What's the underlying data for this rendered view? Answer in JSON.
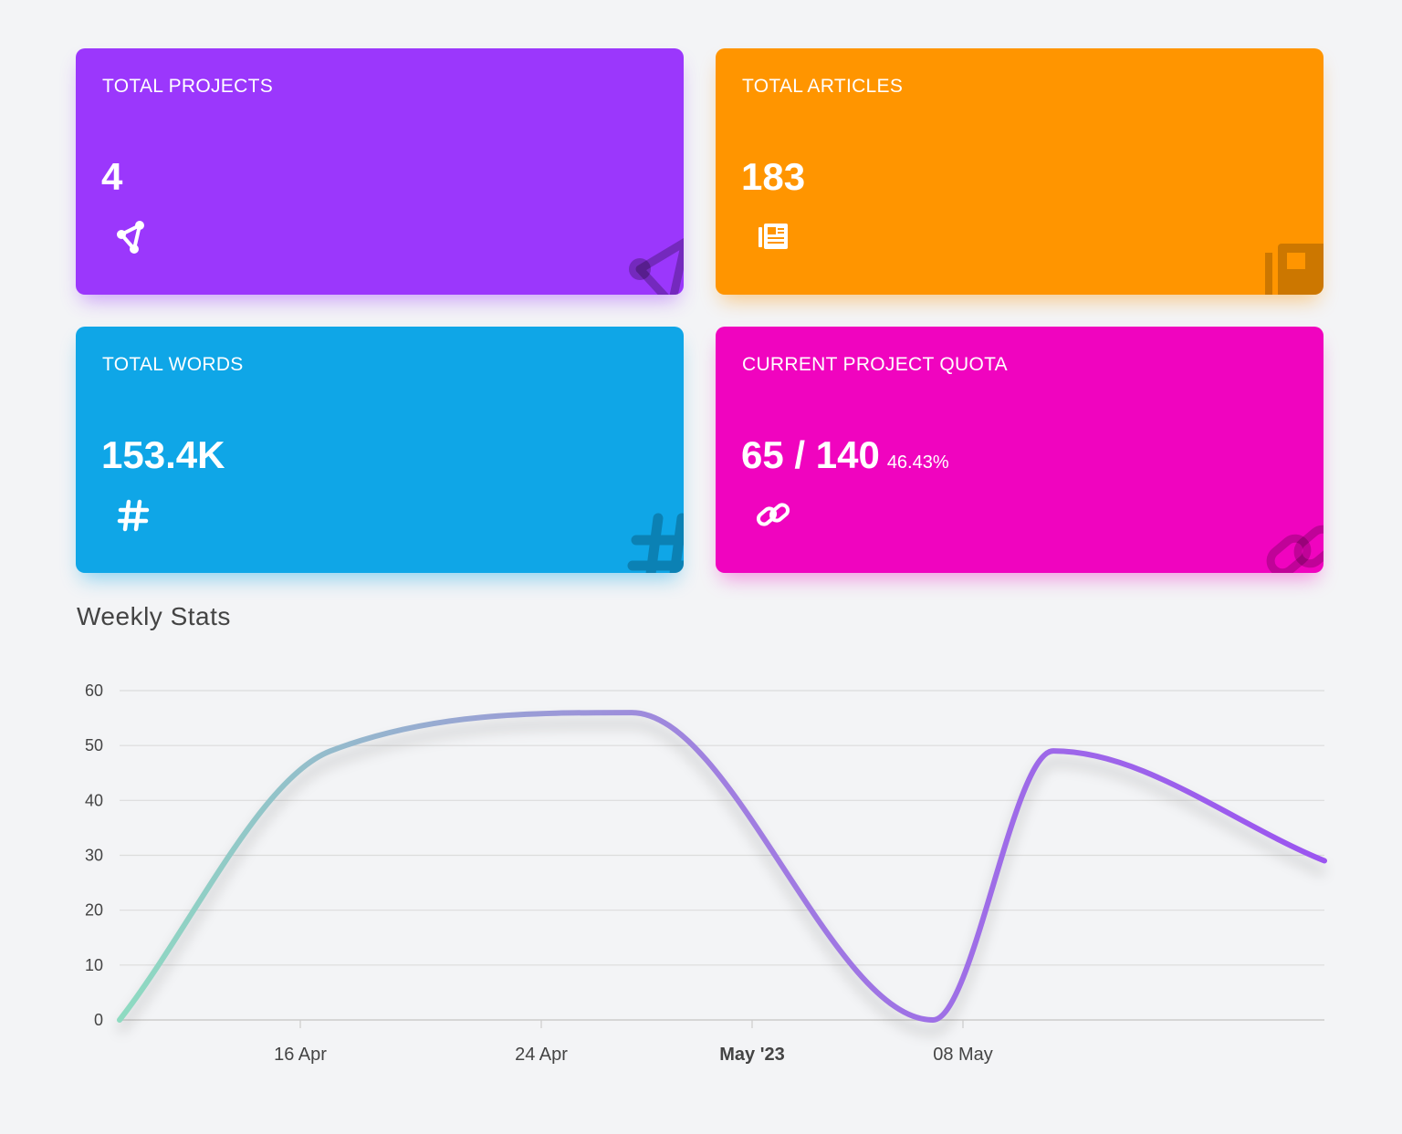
{
  "cards": [
    {
      "title": "TOTAL PROJECTS",
      "value": "4",
      "icon": "project-diagram-icon",
      "color": "#9b37fc",
      "shadow": "rgba(155,55,252,0.45)"
    },
    {
      "title": "TOTAL ARTICLES",
      "value": "183",
      "icon": "newspaper-icon",
      "color": "#ff9500",
      "shadow": "rgba(255,149,0,0.45)"
    },
    {
      "title": "TOTAL WORDS",
      "value": "153.4K",
      "icon": "hashtag-icon",
      "color": "#0fa6e7",
      "shadow": "rgba(15,166,231,0.45)"
    },
    {
      "title": "CURRENT PROJECT QUOTA",
      "value": "65 / 140",
      "percent": "46.43%",
      "icon": "link-icon",
      "color": "#f004bf",
      "shadow": "rgba(240,4,191,0.40)"
    }
  ],
  "weekly": {
    "title": "Weekly Stats"
  },
  "chart_data": {
    "type": "line",
    "title": "",
    "xlabel": "",
    "ylabel": "",
    "x": [
      "2023-04-10",
      "2023-04-17",
      "2023-04-27",
      "2023-05-07",
      "2023-05-11",
      "2023-05-20"
    ],
    "values": [
      0,
      49,
      56,
      0,
      49,
      29
    ],
    "ylim": [
      0,
      60
    ],
    "yticks": [
      "0",
      "10",
      "20",
      "30",
      "40",
      "50",
      "60"
    ],
    "xticks": [
      "16 Apr",
      "24 Apr",
      "May '23",
      "08 May"
    ],
    "xtick_dates": [
      "2023-04-16",
      "2023-04-24",
      "2023-05-01",
      "2023-05-08"
    ],
    "grid": true,
    "curve": "smooth",
    "gradient": [
      "#8edbc1",
      "#a07fe0",
      "#9b55f0"
    ]
  }
}
